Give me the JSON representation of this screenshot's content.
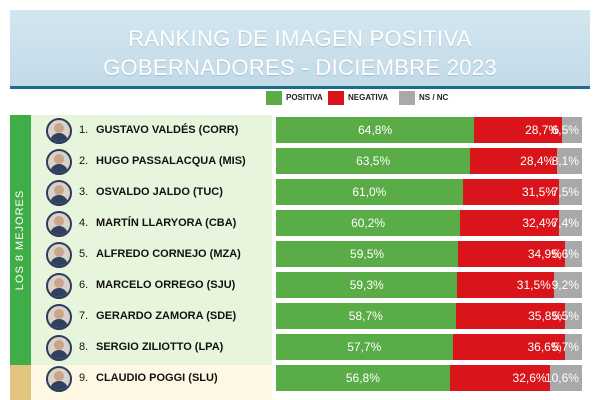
{
  "header": {
    "title_line1": "RANKING DE IMAGEN POSITIVA",
    "title_line2": "GOBERNADORES - DICIEMBRE 2023"
  },
  "colors": {
    "positiva": "#5aac46",
    "negativa": "#d9151b",
    "ns_nc": "#a9a9a9",
    "group_best": "#3fae49",
    "group_best_bg": "#e8f5dd",
    "group_mid": "#e2c47e",
    "group_mid_bg": "#fdf7e3"
  },
  "group_label": "LOS 8 MEJORES",
  "chart_data": {
    "type": "bar",
    "title": "RANKING DE IMAGEN POSITIVA GOBERNADORES - DICIEMBRE 2023",
    "stacked": true,
    "orientation": "horizontal",
    "legend_position": "top",
    "unit": "%",
    "categories": [
      "GUSTAVO VALDÉS (CORR)",
      "HUGO PASSALACQUA (MIS)",
      "OSVALDO JALDO (TUC)",
      "MARTÍN LLARYORA (CBA)",
      "ALFREDO CORNEJO (MZA)",
      "MARCELO ORREGO (SJU)",
      "GERARDO ZAMORA (SDE)",
      "SERGIO ZILIOTTO (LPA)",
      "CLAUDIO POGGI (SLU)"
    ],
    "ranks": [
      "1.",
      "2.",
      "3.",
      "4.",
      "5.",
      "6.",
      "7.",
      "8.",
      "9."
    ],
    "series": [
      {
        "name": "POSITIVA",
        "values": [
          64.8,
          63.5,
          61.0,
          60.2,
          59.5,
          59.3,
          58.7,
          57.7,
          56.8
        ],
        "labels": [
          "64,8%",
          "63,5%",
          "61,0%",
          "60,2%",
          "59,5%",
          "59,3%",
          "58,7%",
          "57,7%",
          "56,8%"
        ]
      },
      {
        "name": "NEGATIVA",
        "values": [
          28.7,
          28.4,
          31.5,
          32.4,
          34.9,
          31.5,
          35.8,
          36.6,
          32.6
        ],
        "labels": [
          "28,7%",
          "28,4%",
          "31,5%",
          "32,4%",
          "34,9%",
          "31,5%",
          "35,8%",
          "36,6%",
          "32,6%"
        ]
      },
      {
        "name": "NS / NC",
        "values": [
          6.5,
          8.1,
          7.5,
          7.4,
          5.6,
          9.2,
          5.5,
          5.7,
          10.6
        ],
        "labels": [
          "6,5%",
          "8,1%",
          "7,5%",
          "7,4%",
          "5,6%",
          "9,2%",
          "5,5%",
          "5,7%",
          "10,6%"
        ]
      }
    ],
    "xlim": [
      0,
      100
    ]
  }
}
